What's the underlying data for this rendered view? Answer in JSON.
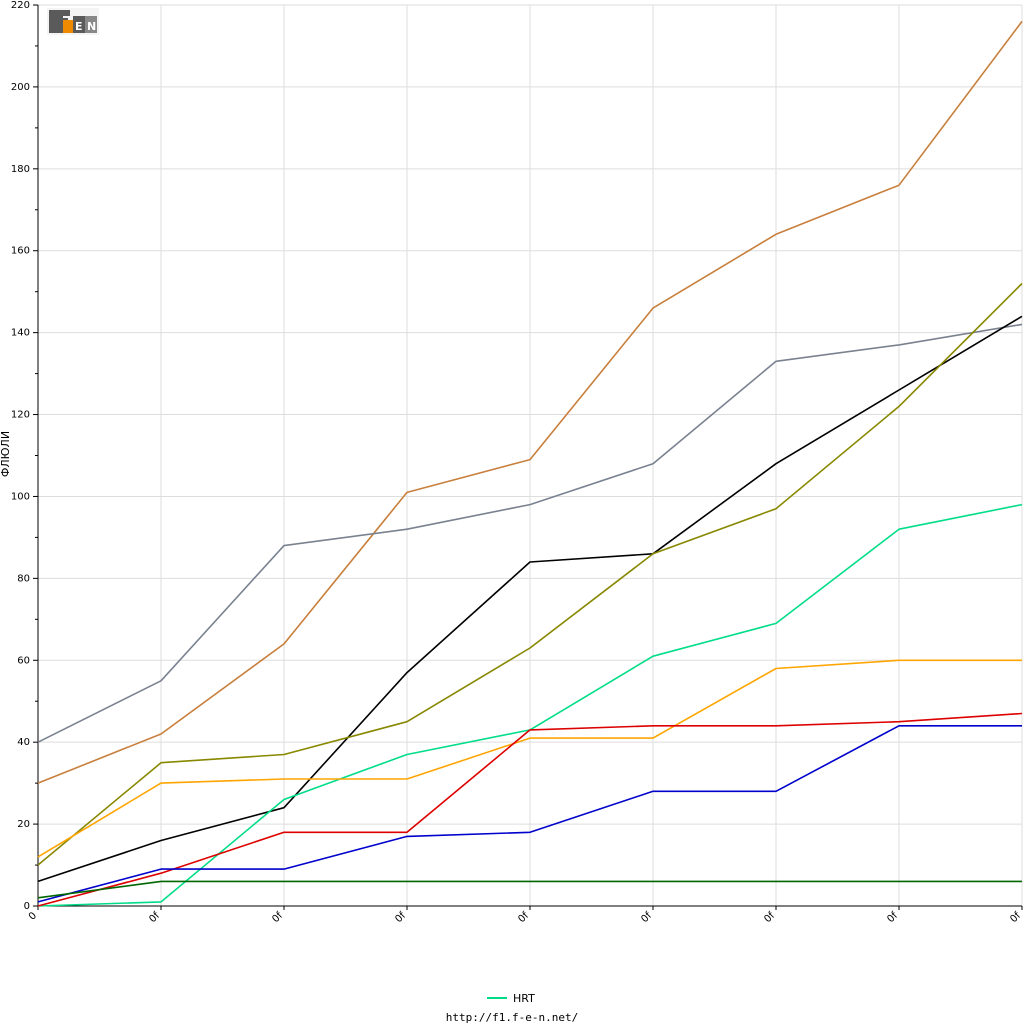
{
  "logo": {
    "text": "F1EN",
    "colors": [
      "#555555",
      "#f08a00"
    ]
  },
  "footer_url": "http://f1.f-e-n.net/",
  "chart_data": {
    "type": "line",
    "title": "",
    "xlabel": "",
    "ylabel": "ФЛЮЛИ",
    "ylim": [
      0,
      220
    ],
    "yticks": [
      0,
      20,
      40,
      60,
      80,
      100,
      120,
      140,
      160,
      180,
      200,
      220
    ],
    "x": [
      0,
      1,
      2,
      3,
      4,
      5,
      6,
      7,
      8
    ],
    "xticklabels": [
      "0",
      "0f",
      "0f",
      "0f",
      "0f",
      "0f",
      "0f",
      "0f",
      "0f"
    ],
    "grid": true,
    "legend_position": "bottom-center",
    "legend": [
      {
        "name": "HRT",
        "color": "#00dd88"
      }
    ],
    "series": [
      {
        "color": "#c87f3c",
        "values": [
          30,
          42,
          64,
          101,
          109,
          146,
          164,
          176,
          216
        ]
      },
      {
        "color": "#7a8290",
        "values": [
          40,
          55,
          88,
          92,
          98,
          108,
          133,
          137,
          142
        ]
      },
      {
        "color": "#000000",
        "values": [
          6,
          16,
          24,
          57,
          84,
          86,
          108,
          126,
          144
        ]
      },
      {
        "color": "#888800",
        "values": [
          10,
          35,
          37,
          45,
          63,
          86,
          97,
          122,
          152
        ]
      },
      {
        "name": "HRT",
        "color": "#00dd88",
        "values": [
          0,
          1,
          26,
          37,
          43,
          61,
          69,
          92,
          98
        ]
      },
      {
        "color": "#ffa500",
        "values": [
          12,
          30,
          31,
          31,
          41,
          41,
          58,
          60,
          60
        ]
      },
      {
        "color": "#dd0000",
        "values": [
          0,
          8,
          18,
          18,
          43,
          44,
          44,
          45,
          47
        ]
      },
      {
        "color": "#0000cc",
        "values": [
          1,
          9,
          9,
          17,
          18,
          28,
          28,
          44,
          44
        ]
      },
      {
        "color": "#006600",
        "values": [
          2,
          6,
          6,
          6,
          6,
          6,
          6,
          6,
          6
        ]
      }
    ]
  }
}
